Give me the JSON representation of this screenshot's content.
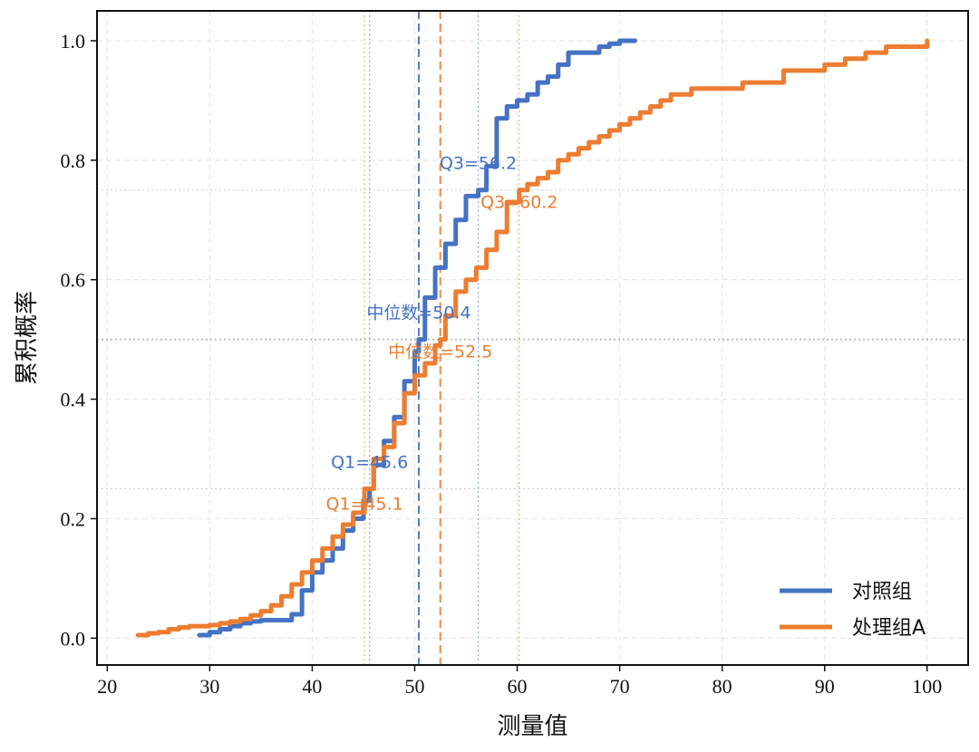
{
  "chart_data": {
    "type": "line",
    "xlabel": "测量值",
    "ylabel": "累积概率",
    "xlim": [
      19,
      104
    ],
    "ylim": [
      -0.045,
      1.05
    ],
    "xticks": [
      20,
      30,
      40,
      50,
      60,
      70,
      80,
      90,
      100
    ],
    "yticks": [
      0.0,
      0.2,
      0.4,
      0.6,
      0.8,
      1.0
    ],
    "grid": true,
    "legend_position": "bottom-right",
    "colors": {
      "control": "#4472c4",
      "treatment": "#ed7d31",
      "reference": "#aaaaaa"
    },
    "series": [
      {
        "name": "对照组",
        "color": "#4472c4",
        "x": [
          29,
          30,
          31,
          32,
          33,
          34,
          35,
          36,
          37,
          38,
          39,
          40,
          41,
          42,
          43,
          44,
          45,
          45.6,
          46,
          47,
          48,
          49,
          50,
          50.4,
          51,
          52,
          53,
          54,
          55,
          56.2,
          57,
          58,
          59,
          60,
          61,
          62,
          63,
          64,
          65,
          66,
          67,
          68,
          69,
          70,
          71.5
        ],
        "y": [
          0.005,
          0.01,
          0.015,
          0.02,
          0.025,
          0.028,
          0.03,
          0.03,
          0.03,
          0.04,
          0.08,
          0.11,
          0.13,
          0.15,
          0.18,
          0.2,
          0.23,
          0.25,
          0.29,
          0.33,
          0.37,
          0.43,
          0.48,
          0.5,
          0.57,
          0.62,
          0.66,
          0.7,
          0.74,
          0.75,
          0.79,
          0.87,
          0.89,
          0.9,
          0.91,
          0.93,
          0.94,
          0.96,
          0.98,
          0.98,
          0.98,
          0.99,
          0.995,
          1.0,
          1.0
        ]
      },
      {
        "name": "处理组A",
        "color": "#ed7d31",
        "x": [
          23,
          24,
          25,
          26,
          27,
          28,
          29,
          30,
          31,
          32,
          33,
          34,
          35,
          36,
          37,
          38,
          39,
          40,
          41,
          42,
          43,
          44,
          45.1,
          46,
          47,
          48,
          49,
          50,
          51,
          52,
          52.5,
          53,
          54,
          55,
          56,
          57,
          58,
          59,
          60.2,
          61,
          62,
          63,
          64,
          65,
          66,
          67,
          68,
          69,
          70,
          71,
          72,
          73,
          74,
          75,
          76,
          77,
          78,
          80,
          82,
          84,
          86,
          88,
          90,
          92,
          94,
          96,
          98,
          100
        ],
        "y": [
          0.005,
          0.008,
          0.01,
          0.015,
          0.018,
          0.02,
          0.02,
          0.022,
          0.025,
          0.028,
          0.032,
          0.038,
          0.045,
          0.055,
          0.07,
          0.09,
          0.11,
          0.13,
          0.15,
          0.17,
          0.19,
          0.21,
          0.25,
          0.3,
          0.32,
          0.36,
          0.41,
          0.44,
          0.46,
          0.49,
          0.5,
          0.54,
          0.58,
          0.6,
          0.62,
          0.65,
          0.68,
          0.73,
          0.75,
          0.76,
          0.77,
          0.78,
          0.8,
          0.81,
          0.82,
          0.83,
          0.84,
          0.85,
          0.86,
          0.87,
          0.88,
          0.89,
          0.9,
          0.91,
          0.91,
          0.92,
          0.92,
          0.92,
          0.93,
          0.93,
          0.95,
          0.95,
          0.96,
          0.97,
          0.98,
          0.99,
          0.99,
          1.0
        ]
      }
    ],
    "reference_lines": {
      "horizontal": [
        0.25,
        0.5,
        0.75
      ],
      "control": {
        "q1": 45.6,
        "median": 50.4,
        "q3": 56.2
      },
      "treatment": {
        "q1": 45.1,
        "median": 52.5,
        "q3": 60.2
      }
    },
    "annotations": [
      {
        "text": "Q3=56.2",
        "x": 56.2,
        "y": 0.785,
        "series": "control"
      },
      {
        "text": "中位数=50.4",
        "x": 50.4,
        "y": 0.535,
        "series": "control"
      },
      {
        "text": "Q1=45.6",
        "x": 45.6,
        "y": 0.285,
        "series": "control"
      },
      {
        "text": "Q3=60.2",
        "x": 60.2,
        "y": 0.72,
        "series": "treatment"
      },
      {
        "text": "中位数=52.5",
        "x": 52.5,
        "y": 0.47,
        "series": "treatment"
      },
      {
        "text": "Q1=45.1",
        "x": 45.1,
        "y": 0.215,
        "series": "treatment"
      }
    ]
  }
}
